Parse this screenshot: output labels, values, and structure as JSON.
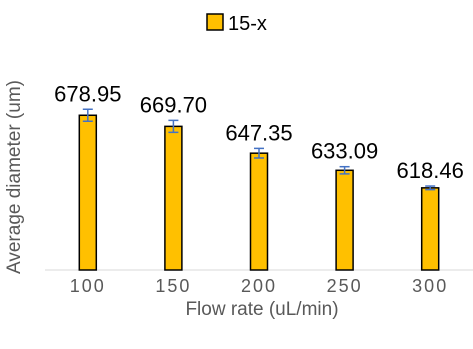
{
  "chart_data": {
    "type": "bar",
    "categories": [
      "100",
      "150",
      "200",
      "250",
      "300"
    ],
    "series": [
      {
        "name": "15-x",
        "values": [
          678.95,
          669.7,
          647.35,
          633.09,
          618.46
        ],
        "labels": [
          "678.95",
          "669.70",
          "647.35",
          "633.09",
          "618.46"
        ],
        "error": [
          5,
          5,
          4,
          3,
          1.5
        ]
      }
    ],
    "xlabel": "Flow rate (uL/min)",
    "ylabel": "Average diameter (um)",
    "ylim": [
      550,
      700
    ],
    "grid": false,
    "legend_position": "top",
    "colors": {
      "bar_fill": "#FFC000",
      "bar_stroke": "#000000",
      "error_bar": "#4472C4"
    }
  }
}
